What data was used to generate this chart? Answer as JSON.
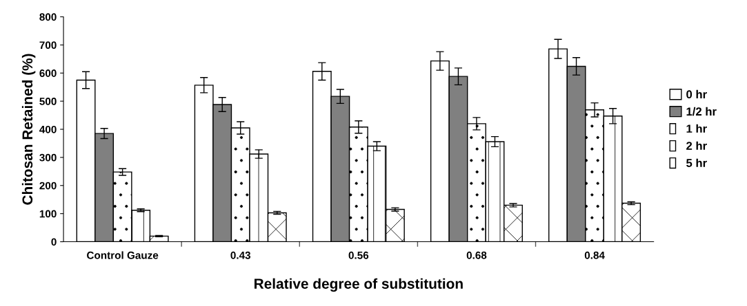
{
  "chart_data": {
    "type": "bar",
    "xlabel": "Relative degree of substitution",
    "ylabel": "Chitosan Retained (%)",
    "categories": [
      "Control Gauze",
      "0.43",
      "0.56",
      "0.68",
      "0.84"
    ],
    "series": [
      {
        "name": "0 hr",
        "color": "#ffffff",
        "values": [
          575,
          557,
          606,
          643,
          686
        ],
        "errors": [
          30,
          27,
          31,
          33,
          34
        ]
      },
      {
        "name": "1/2 hr",
        "color": "#808080",
        "values": [
          385,
          488,
          517,
          588,
          624
        ],
        "errors": [
          18,
          25,
          25,
          30,
          31
        ]
      },
      {
        "name": "1 hr",
        "color": "#ffffff",
        "values": [
          248,
          405,
          408,
          420,
          469
        ],
        "errors": [
          12,
          22,
          22,
          22,
          25
        ]
      },
      {
        "name": "2 hr",
        "color": "#ffffff",
        "values": [
          112,
          312,
          340,
          356,
          447
        ],
        "errors": [
          5,
          15,
          16,
          18,
          27
        ]
      },
      {
        "name": "5 hr",
        "color": "#ffffff",
        "values": [
          20,
          103,
          115,
          130,
          137
        ],
        "errors": [
          2,
          5,
          6,
          6,
          5
        ]
      }
    ],
    "ylim": [
      0,
      800
    ],
    "yticks": [
      0,
      100,
      200,
      300,
      400,
      500,
      600,
      700,
      800
    ],
    "grid": false,
    "legend": "right"
  }
}
